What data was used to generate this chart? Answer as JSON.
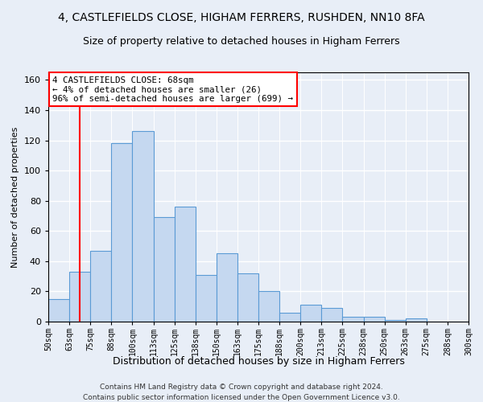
{
  "title": "4, CASTLEFIELDS CLOSE, HIGHAM FERRERS, RUSHDEN, NN10 8FA",
  "subtitle": "Size of property relative to detached houses in Higham Ferrers",
  "xlabel_bottom": "Distribution of detached houses by size in Higham Ferrers",
  "ylabel": "Number of detached properties",
  "footer_line1": "Contains HM Land Registry data © Crown copyright and database right 2024.",
  "footer_line2": "Contains public sector information licensed under the Open Government Licence v3.0.",
  "bar_heights": [
    15,
    33,
    47,
    118,
    126,
    69,
    76,
    31,
    45,
    32,
    20,
    6,
    11,
    9,
    3,
    3,
    1,
    2,
    0,
    0
  ],
  "bin_labels": [
    "50sqm",
    "63sqm",
    "75sqm",
    "88sqm",
    "100sqm",
    "113sqm",
    "125sqm",
    "138sqm",
    "150sqm",
    "163sqm",
    "175sqm",
    "188sqm",
    "200sqm",
    "213sqm",
    "225sqm",
    "238sqm",
    "250sqm",
    "263sqm",
    "275sqm",
    "288sqm",
    "300sqm"
  ],
  "bar_color": "#c5d8f0",
  "bar_edge_color": "#5b9bd5",
  "annotation_line1": "4 CASTLEFIELDS CLOSE: 68sqm",
  "annotation_line2": "← 4% of detached houses are smaller (26)",
  "annotation_line3": "96% of semi-detached houses are larger (699) →",
  "red_line_x": 1.5,
  "ylim": [
    0,
    165
  ],
  "yticks": [
    0,
    20,
    40,
    60,
    80,
    100,
    120,
    140,
    160
  ],
  "background_color": "#e8eef7",
  "plot_bg_color": "#e8eef7",
  "grid_color": "#ffffff",
  "title_fontsize": 10,
  "subtitle_fontsize": 9,
  "ylabel_fontsize": 8,
  "xlabel_fontsize": 9,
  "tick_fontsize": 7,
  "footer_fontsize": 6.5,
  "annotation_fontsize": 7.8
}
